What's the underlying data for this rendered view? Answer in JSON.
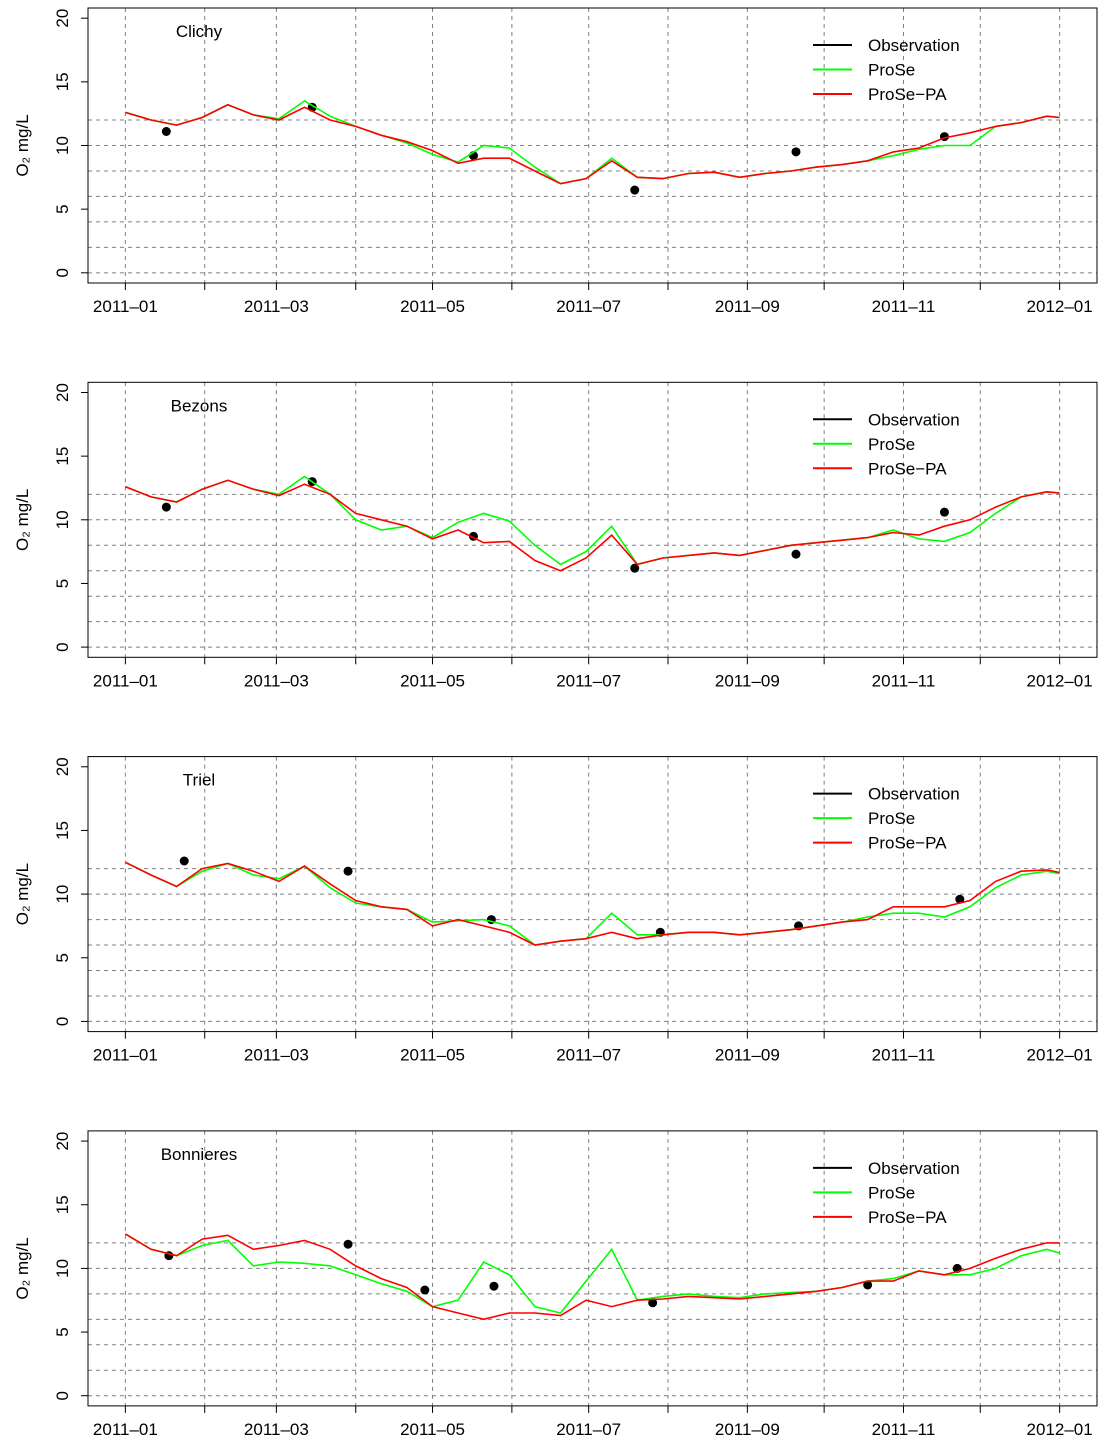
{
  "chart_data": [
    {
      "type": "line",
      "title": "Clichy",
      "ylabel": "O₂ mg/L",
      "legend": "topright",
      "x": [
        0,
        10,
        20,
        30,
        40,
        50,
        60,
        70,
        80,
        90,
        100,
        110,
        120,
        130,
        140,
        150,
        160,
        170,
        180,
        190,
        200,
        210,
        220,
        230,
        240,
        250,
        260,
        270,
        280,
        290,
        300,
        310,
        320,
        330,
        340,
        350,
        360,
        365
      ],
      "xlim": [
        -14.6,
        379.6
      ],
      "ylim": [
        -0.8,
        20.8
      ],
      "xticks": [
        {
          "value": 0,
          "label": "2011–01"
        },
        {
          "value": 59,
          "label": "2011–03"
        },
        {
          "value": 120,
          "label": "2011–05"
        },
        {
          "value": 181,
          "label": "2011–07"
        },
        {
          "value": 243,
          "label": "2011–09"
        },
        {
          "value": 304,
          "label": "2011–11"
        },
        {
          "value": 365,
          "label": "2012–01"
        }
      ],
      "xminorticks": [
        31,
        90,
        151,
        212,
        273,
        334
      ],
      "yticks": [
        0,
        5,
        10,
        15,
        20
      ],
      "ygrid": [
        0,
        2,
        4,
        6,
        8,
        10,
        12
      ],
      "grid": true,
      "series": [
        {
          "name": "Observation",
          "color": "#000000",
          "x": [
            16,
            73,
            136,
            199,
            262,
            320
          ],
          "values": [
            11.1,
            13.0,
            9.2,
            6.5,
            9.5,
            10.7
          ]
        },
        {
          "name": "ProSe",
          "color": "#00ff00",
          "values": [
            12.6,
            12.0,
            11.6,
            12.2,
            13.2,
            12.4,
            12.1,
            13.5,
            12.3,
            11.5,
            10.8,
            10.2,
            9.3,
            8.7,
            10.0,
            9.8,
            8.3,
            7.0,
            7.4,
            9.0,
            7.5,
            7.4,
            7.8,
            7.9,
            7.5,
            7.8,
            8.0,
            8.3,
            8.5,
            8.8,
            9.2,
            9.7,
            10.0,
            10.0,
            11.5,
            11.8,
            12.3,
            12.2
          ]
        },
        {
          "name": "ProSe−PA",
          "color": "#ff0000",
          "values": [
            12.6,
            12.0,
            11.6,
            12.2,
            13.2,
            12.4,
            12.0,
            13.0,
            12.0,
            11.5,
            10.8,
            10.3,
            9.6,
            8.6,
            9.0,
            9.0,
            8.0,
            7.0,
            7.4,
            8.8,
            7.5,
            7.4,
            7.8,
            7.9,
            7.5,
            7.8,
            8.0,
            8.3,
            8.5,
            8.8,
            9.5,
            9.8,
            10.6,
            11.0,
            11.5,
            11.8,
            12.3,
            12.2
          ]
        }
      ]
    },
    {
      "type": "line",
      "title": "Bezons",
      "ylabel": "O₂ mg/L",
      "legend": "topright",
      "x": [
        0,
        10,
        20,
        30,
        40,
        50,
        60,
        70,
        80,
        90,
        100,
        110,
        120,
        130,
        140,
        150,
        160,
        170,
        180,
        190,
        200,
        210,
        220,
        230,
        240,
        250,
        260,
        270,
        280,
        290,
        300,
        310,
        320,
        330,
        340,
        350,
        360,
        365
      ],
      "xlim": [
        -14.6,
        379.6
      ],
      "ylim": [
        -0.8,
        20.8
      ],
      "xticks": [
        {
          "value": 0,
          "label": "2011–01"
        },
        {
          "value": 59,
          "label": "2011–03"
        },
        {
          "value": 120,
          "label": "2011–05"
        },
        {
          "value": 181,
          "label": "2011–07"
        },
        {
          "value": 243,
          "label": "2011–09"
        },
        {
          "value": 304,
          "label": "2011–11"
        },
        {
          "value": 365,
          "label": "2012–01"
        }
      ],
      "xminorticks": [
        31,
        90,
        151,
        212,
        273,
        334
      ],
      "yticks": [
        0,
        5,
        10,
        15,
        20
      ],
      "ygrid": [
        0,
        2,
        4,
        6,
        8,
        10,
        12
      ],
      "grid": true,
      "series": [
        {
          "name": "Observation",
          "color": "#000000",
          "x": [
            16,
            73,
            136,
            199,
            262,
            320
          ],
          "values": [
            11.0,
            13.0,
            8.7,
            6.2,
            7.3,
            10.6
          ]
        },
        {
          "name": "ProSe",
          "color": "#00ff00",
          "values": [
            12.6,
            11.8,
            11.4,
            12.4,
            13.1,
            12.4,
            12.0,
            13.4,
            12.0,
            10.0,
            9.2,
            9.5,
            8.6,
            9.8,
            10.5,
            9.9,
            8.0,
            6.5,
            7.5,
            9.5,
            6.5,
            7.0,
            7.2,
            7.4,
            7.2,
            7.6,
            8.0,
            8.2,
            8.4,
            8.6,
            9.2,
            8.5,
            8.3,
            9.0,
            10.5,
            11.8,
            12.2,
            12.1
          ]
        },
        {
          "name": "ProSe−PA",
          "color": "#ff0000",
          "values": [
            12.6,
            11.8,
            11.4,
            12.4,
            13.1,
            12.4,
            11.9,
            12.8,
            12.0,
            10.5,
            10.0,
            9.5,
            8.5,
            9.2,
            8.2,
            8.3,
            6.8,
            6.0,
            7.0,
            8.8,
            6.5,
            7.0,
            7.2,
            7.4,
            7.2,
            7.6,
            8.0,
            8.2,
            8.4,
            8.6,
            9.0,
            8.8,
            9.5,
            10.0,
            11.0,
            11.8,
            12.2,
            12.1
          ]
        }
      ]
    },
    {
      "type": "line",
      "title": "Triel",
      "ylabel": "O₂ mg/L",
      "legend": "topright",
      "x": [
        0,
        10,
        20,
        30,
        40,
        50,
        60,
        70,
        80,
        90,
        100,
        110,
        120,
        130,
        140,
        150,
        160,
        170,
        180,
        190,
        200,
        210,
        220,
        230,
        240,
        250,
        260,
        270,
        280,
        290,
        300,
        310,
        320,
        330,
        340,
        350,
        360,
        365
      ],
      "xlim": [
        -14.6,
        379.6
      ],
      "ylim": [
        -0.8,
        20.8
      ],
      "xticks": [
        {
          "value": 0,
          "label": "2011–01"
        },
        {
          "value": 59,
          "label": "2011–03"
        },
        {
          "value": 120,
          "label": "2011–05"
        },
        {
          "value": 181,
          "label": "2011–07"
        },
        {
          "value": 243,
          "label": "2011–09"
        },
        {
          "value": 304,
          "label": "2011–11"
        },
        {
          "value": 365,
          "label": "2012–01"
        }
      ],
      "xminorticks": [
        31,
        90,
        151,
        212,
        273,
        334
      ],
      "yticks": [
        0,
        5,
        10,
        15,
        20
      ],
      "ygrid": [
        0,
        2,
        4,
        6,
        8,
        10,
        12
      ],
      "grid": true,
      "series": [
        {
          "name": "Observation",
          "color": "#000000",
          "x": [
            23,
            87,
            143,
            209,
            263,
            326
          ],
          "values": [
            12.6,
            11.8,
            8.0,
            7.0,
            7.5,
            9.6
          ]
        },
        {
          "name": "ProSe",
          "color": "#00ff00",
          "values": [
            12.5,
            11.5,
            10.6,
            11.8,
            12.4,
            11.5,
            11.2,
            12.2,
            10.5,
            9.3,
            9.0,
            8.8,
            7.8,
            7.9,
            8.0,
            7.5,
            6.0,
            6.3,
            6.5,
            8.5,
            6.8,
            6.8,
            7.0,
            7.0,
            6.8,
            7.0,
            7.2,
            7.5,
            7.8,
            8.2,
            8.5,
            8.5,
            8.2,
            9.0,
            10.5,
            11.5,
            11.8,
            11.6
          ]
        },
        {
          "name": "ProSe−PA",
          "color": "#ff0000",
          "values": [
            12.5,
            11.5,
            10.6,
            12.0,
            12.4,
            11.8,
            11.0,
            12.2,
            10.8,
            9.5,
            9.0,
            8.8,
            7.5,
            8.0,
            7.5,
            7.0,
            6.0,
            6.3,
            6.5,
            7.0,
            6.5,
            6.8,
            7.0,
            7.0,
            6.8,
            7.0,
            7.2,
            7.5,
            7.8,
            8.0,
            9.0,
            9.0,
            9.0,
            9.5,
            11.0,
            11.8,
            11.9,
            11.7
          ]
        }
      ]
    },
    {
      "type": "line",
      "title": "Bonnieres",
      "ylabel": "O₂ mg/L",
      "legend": "topright",
      "x": [
        0,
        10,
        20,
        30,
        40,
        50,
        60,
        70,
        80,
        90,
        100,
        110,
        120,
        130,
        140,
        150,
        160,
        170,
        180,
        190,
        200,
        210,
        220,
        230,
        240,
        250,
        260,
        270,
        280,
        290,
        300,
        310,
        320,
        330,
        340,
        350,
        360,
        365
      ],
      "xlim": [
        -14.6,
        379.6
      ],
      "ylim": [
        -0.8,
        20.8
      ],
      "xticks": [
        {
          "value": 0,
          "label": "2011–01"
        },
        {
          "value": 59,
          "label": "2011–03"
        },
        {
          "value": 120,
          "label": "2011–05"
        },
        {
          "value": 181,
          "label": "2011–07"
        },
        {
          "value": 243,
          "label": "2011–09"
        },
        {
          "value": 304,
          "label": "2011–11"
        },
        {
          "value": 365,
          "label": "2012–01"
        }
      ],
      "xminorticks": [
        31,
        90,
        151,
        212,
        273,
        334
      ],
      "yticks": [
        0,
        5,
        10,
        15,
        20
      ],
      "ygrid": [
        0,
        2,
        4,
        6,
        8,
        10,
        12
      ],
      "grid": true,
      "series": [
        {
          "name": "Observation",
          "color": "#000000",
          "x": [
            17,
            87,
            117,
            144,
            206,
            290,
            325
          ],
          "values": [
            11.0,
            11.9,
            8.3,
            8.6,
            7.3,
            8.7,
            10.0
          ]
        },
        {
          "name": "ProSe",
          "color": "#00ff00",
          "values": [
            12.7,
            11.5,
            11.0,
            11.8,
            12.2,
            10.2,
            10.5,
            10.4,
            10.2,
            9.5,
            8.8,
            8.2,
            7.0,
            7.5,
            10.5,
            9.5,
            7.0,
            6.5,
            9.0,
            11.5,
            7.5,
            7.8,
            8.0,
            7.8,
            7.7,
            8.0,
            8.1,
            8.2,
            8.5,
            9.0,
            9.2,
            9.8,
            9.5,
            9.5,
            10.0,
            11.0,
            11.5,
            11.2
          ]
        },
        {
          "name": "ProSe−PA",
          "color": "#ff0000",
          "values": [
            12.7,
            11.5,
            11.0,
            12.3,
            12.6,
            11.5,
            11.8,
            12.2,
            11.5,
            10.2,
            9.2,
            8.5,
            7.0,
            6.5,
            6.0,
            6.5,
            6.5,
            6.3,
            7.5,
            7.0,
            7.5,
            7.6,
            7.8,
            7.7,
            7.6,
            7.8,
            8.0,
            8.2,
            8.5,
            9.0,
            9.0,
            9.8,
            9.5,
            10.0,
            10.8,
            11.5,
            12.0,
            12.0
          ]
        }
      ]
    }
  ]
}
